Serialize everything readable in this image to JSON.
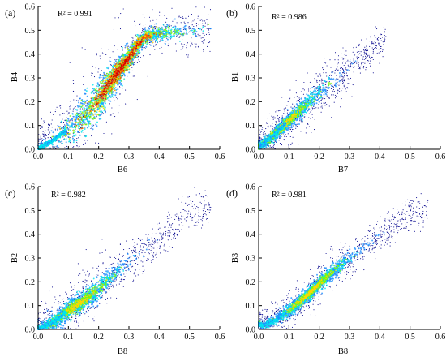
{
  "chart_data": [
    {
      "type": "scatter",
      "panel": "(a)",
      "annotation": "R² = 0.991",
      "xlabel": "B6",
      "ylabel": "B4",
      "xlim": [
        0,
        0.6
      ],
      "ylim": [
        0,
        0.6
      ],
      "xticks": [
        "0.0",
        "0.1",
        "0.2",
        "0.3",
        "0.4",
        "0.5",
        "0.6"
      ],
      "yticks": [
        "0.0",
        "0.1",
        "0.2",
        "0.3",
        "0.4",
        "0.5",
        "0.6"
      ],
      "density_colormap": [
        "#00008b",
        "#1e90ff",
        "#00e5ee",
        "#7cfc00",
        "#ffd700",
        "#ff4500",
        "#d00000"
      ],
      "density_ridge": [
        [
          0,
          0
        ],
        [
          0.05,
          0.04
        ],
        [
          0.1,
          0.085
        ],
        [
          0.15,
          0.14
        ],
        [
          0.2,
          0.21
        ],
        [
          0.25,
          0.3
        ],
        [
          0.28,
          0.35
        ],
        [
          0.32,
          0.42
        ],
        [
          0.35,
          0.47
        ],
        [
          0.4,
          0.49
        ],
        [
          0.5,
          0.495
        ],
        [
          0.57,
          0.5
        ]
      ],
      "peak_density": [
        0.27,
        0.34
      ]
    },
    {
      "type": "scatter",
      "panel": "(b)",
      "annotation": "R² = 0.986",
      "xlabel": "B7",
      "ylabel": "B1",
      "xlim": [
        0,
        0.6
      ],
      "ylim": [
        0,
        0.6
      ],
      "xticks": [
        "0.0",
        "0.1",
        "0.2",
        "0.3",
        "0.4",
        "0.5",
        "0.6"
      ],
      "yticks": [
        "0.0",
        "0.1",
        "0.2",
        "0.3",
        "0.4",
        "0.5",
        "0.6"
      ],
      "density_colormap": [
        "#00008b",
        "#1e90ff",
        "#00e5ee",
        "#7cfc00",
        "#ffd700"
      ],
      "density_ridge": [
        [
          0,
          0.01
        ],
        [
          0.05,
          0.06
        ],
        [
          0.1,
          0.12
        ],
        [
          0.15,
          0.18
        ],
        [
          0.2,
          0.24
        ],
        [
          0.25,
          0.29
        ],
        [
          0.3,
          0.34
        ],
        [
          0.35,
          0.39
        ],
        [
          0.42,
          0.47
        ]
      ],
      "peak_density": [
        0.08,
        0.1
      ]
    },
    {
      "type": "scatter",
      "panel": "(c)",
      "annotation": "R² = 0.982",
      "xlabel": "B8",
      "ylabel": "B2",
      "xlim": [
        0,
        0.6
      ],
      "ylim": [
        0,
        0.6
      ],
      "xticks": [
        "0.0",
        "0.1",
        "0.2",
        "0.3",
        "0.4",
        "0.5",
        "0.6"
      ],
      "yticks": [
        "0.0",
        "0.1",
        "0.2",
        "0.3",
        "0.4",
        "0.5",
        "0.6"
      ],
      "density_colormap": [
        "#00008b",
        "#1e90ff",
        "#00e5ee",
        "#7cfc00",
        "#ffd700"
      ],
      "density_ridge": [
        [
          0,
          0
        ],
        [
          0.05,
          0.03
        ],
        [
          0.1,
          0.08
        ],
        [
          0.15,
          0.12
        ],
        [
          0.2,
          0.17
        ],
        [
          0.25,
          0.23
        ],
        [
          0.3,
          0.29
        ],
        [
          0.4,
          0.37
        ],
        [
          0.5,
          0.5
        ],
        [
          0.57,
          0.51
        ]
      ],
      "peak_density": [
        0.13,
        0.11
      ]
    },
    {
      "type": "scatter",
      "panel": "(d)",
      "annotation": "R² = 0.981",
      "xlabel": "B8",
      "ylabel": "B3",
      "xlim": [
        0,
        0.6
      ],
      "ylim": [
        0,
        0.6
      ],
      "xticks": [
        "0.0",
        "0.1",
        "0.2",
        "0.3",
        "0.4",
        "0.5",
        "0.6"
      ],
      "yticks": [
        "0.0",
        "0.1",
        "0.2",
        "0.3",
        "0.4",
        "0.5",
        "0.6"
      ],
      "density_colormap": [
        "#00008b",
        "#1e90ff",
        "#00e5ee",
        "#7cfc00",
        "#ffd700"
      ],
      "density_ridge": [
        [
          0.02,
          0.02
        ],
        [
          0.05,
          0.035
        ],
        [
          0.1,
          0.08
        ],
        [
          0.15,
          0.13
        ],
        [
          0.2,
          0.19
        ],
        [
          0.25,
          0.25
        ],
        [
          0.3,
          0.3
        ],
        [
          0.4,
          0.39
        ],
        [
          0.5,
          0.48
        ],
        [
          0.56,
          0.5
        ]
      ],
      "peak_density": [
        0.17,
        0.16
      ]
    }
  ]
}
